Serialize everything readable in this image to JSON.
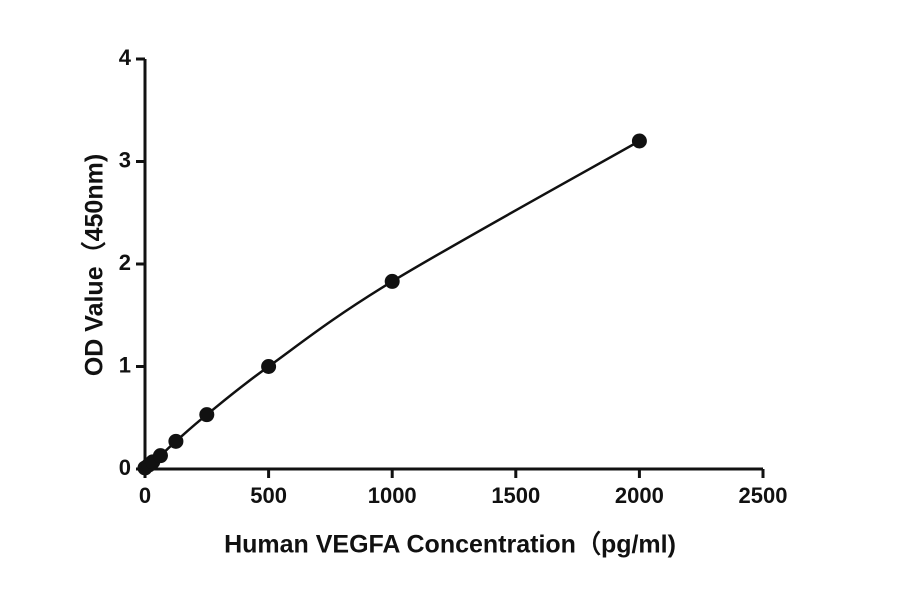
{
  "chart_data": {
    "type": "scatter",
    "x_label": "Human VEGFA   Concentration（pg/ml)",
    "y_label": "OD Value（450nm)",
    "x": [
      0,
      15.6,
      31.25,
      62.5,
      125,
      250,
      500,
      1000,
      2000
    ],
    "y": [
      0.01,
      0.04,
      0.07,
      0.13,
      0.27,
      0.53,
      1.0,
      1.83,
      3.2
    ],
    "color": "#111111",
    "xlim": [
      0,
      2500
    ],
    "xticks": [
      0,
      500,
      1000,
      1500,
      2000,
      2500
    ],
    "ylim": [
      0,
      4
    ],
    "yticks": [
      0,
      1,
      2,
      3,
      4
    ]
  }
}
